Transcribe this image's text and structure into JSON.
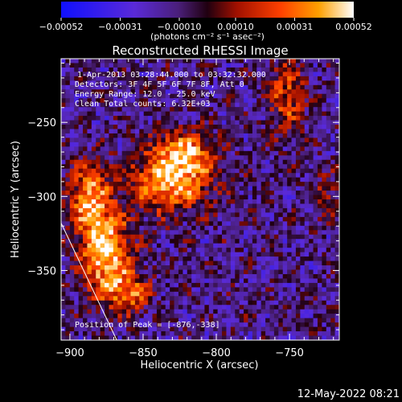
{
  "chart_data": {
    "type": "heatmap",
    "title": "Reconstructed RHESSI Image",
    "xlabel": "Heliocentric X (arcsec)",
    "ylabel": "Heliocentric Y (arcsec)",
    "xlim": [
      -906,
      -716
    ],
    "ylim": [
      -397,
      -207
    ],
    "x_ticks": [
      -900,
      -850,
      -800,
      -750
    ],
    "y_ticks": [
      -250,
      -300,
      -350
    ],
    "x_tick_labels": [
      "−900",
      "−850",
      "−800",
      "−750"
    ],
    "y_tick_labels": [
      "−250",
      "−300",
      "−350"
    ],
    "colorbar": {
      "min": -0.00052,
      "max": 0.00052,
      "tick_values": [
        -0.00052,
        -0.00031,
        -0.0001,
        0.0001,
        0.00031,
        0.00052
      ],
      "tick_labels": [
        "−0.00052",
        "−0.00031",
        "−0.00010",
        "0.00010",
        "0.00031",
        "0.00052"
      ],
      "unit_label": "(photons cm⁻² s⁻¹ asec⁻²)",
      "colormap": "red-temperature with blue negatives"
    },
    "annotations": [
      "1-Apr-2013 03:28:44.000 to 03:32:32.000",
      "Detectors: 3F 4F 5F 6F 7F 8F, Att 0",
      "Energy Range: 12.0 - 25.0 keV",
      "Clean     Total counts: 6.32E+03"
    ],
    "peak_label": "Position of Peak = [-876,-338]",
    "peak": [
      -876,
      -338
    ],
    "limb_line": [
      [
        -906,
        -318
      ],
      [
        -868,
        -397
      ]
    ],
    "image_grid": {
      "nx": 64,
      "ny": 64
    },
    "sources": [
      {
        "x": -876,
        "y": -338,
        "amp": 1.0,
        "sx": 12,
        "sy": 20
      },
      {
        "x": -887,
        "y": -300,
        "amp": 0.75,
        "sx": 9,
        "sy": 16
      },
      {
        "x": -832,
        "y": -290,
        "amp": 0.85,
        "sx": 20,
        "sy": 14
      },
      {
        "x": -822,
        "y": -270,
        "amp": 0.65,
        "sx": 14,
        "sy": 11
      },
      {
        "x": -860,
        "y": -365,
        "amp": 0.6,
        "sx": 10,
        "sy": 10
      },
      {
        "x": -752,
        "y": -232,
        "amp": 0.55,
        "sx": 9,
        "sy": 18
      },
      {
        "x": -725,
        "y": -300,
        "amp": 0.35,
        "sx": 8,
        "sy": 10
      }
    ]
  },
  "footer": {
    "date": "12-May-2022 08:21"
  },
  "colors": {
    "background": "#000000",
    "text": "#ffffff"
  }
}
